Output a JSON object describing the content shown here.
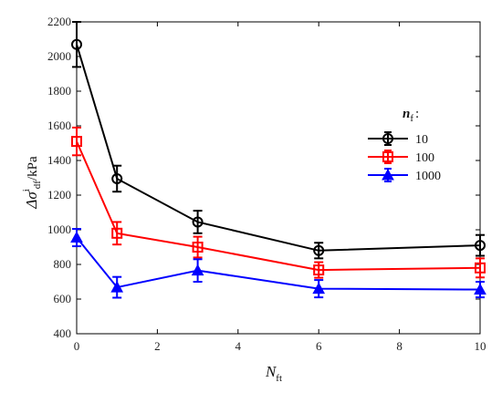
{
  "chart_data": {
    "type": "line",
    "xlabel_main": "N",
    "xlabel_sub": "ft",
    "ylabel_main": "Δσ",
    "ylabel_sup": "i",
    "ylabel_sub": "df",
    "ylabel_unit": "/kPa",
    "xlim": [
      0,
      10
    ],
    "ylim": [
      400,
      2200
    ],
    "xticks": [
      0,
      2,
      4,
      6,
      8,
      10
    ],
    "yticks": [
      400,
      600,
      800,
      1000,
      1200,
      1400,
      1600,
      1800,
      2000,
      2200
    ],
    "legend_title_main": "n",
    "legend_title_sub": "f",
    "legend_title_suffix": ":",
    "legend_position": "right",
    "grid": false,
    "x": [
      0,
      1,
      3,
      6,
      10
    ],
    "series": [
      {
        "name": "10",
        "color": "#000000",
        "marker": "circle",
        "values": [
          2070,
          1295,
          1045,
          880,
          910
        ],
        "errors": [
          130,
          75,
          65,
          45,
          60
        ]
      },
      {
        "name": "100",
        "color": "#ff0000",
        "marker": "square",
        "values": [
          1510,
          980,
          900,
          768,
          780
        ],
        "errors": [
          80,
          65,
          60,
          45,
          55
        ]
      },
      {
        "name": "1000",
        "color": "#0000ff",
        "marker": "triangle",
        "values": [
          955,
          668,
          765,
          660,
          655
        ],
        "errors": [
          50,
          60,
          65,
          50,
          45
        ]
      }
    ]
  }
}
